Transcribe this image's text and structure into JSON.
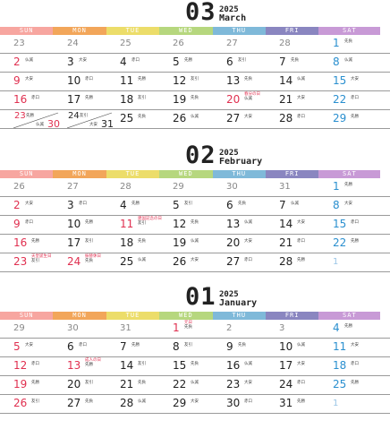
{
  "dow_labels": [
    "SUN",
    "MON",
    "TUE",
    "WED",
    "THU",
    "FRI",
    "SAT"
  ],
  "dow_colors": [
    "#f7a6a0",
    "#f2a65a",
    "#ecdd6a",
    "#b6d77e",
    "#7fb9d9",
    "#8a86c0",
    "#c89ad6"
  ],
  "months": [
    {
      "num": "03",
      "year": "2025",
      "name": "March",
      "weeks": [
        [
          {
            "d": "23",
            "c": "grey"
          },
          {
            "d": "24",
            "c": "grey"
          },
          {
            "d": "25",
            "c": "grey"
          },
          {
            "d": "26",
            "c": "grey"
          },
          {
            "d": "27",
            "c": "grey"
          },
          {
            "d": "28",
            "c": "grey"
          },
          {
            "d": "1",
            "c": "blue",
            "r": "先負"
          }
        ],
        [
          {
            "d": "2",
            "c": "red",
            "r": "仏滅"
          },
          {
            "d": "3",
            "r": "大安"
          },
          {
            "d": "4",
            "r": "赤口"
          },
          {
            "d": "5",
            "r": "先勝"
          },
          {
            "d": "6",
            "r": "友引"
          },
          {
            "d": "7",
            "r": "先負"
          },
          {
            "d": "8",
            "c": "blue",
            "r": "仏滅"
          }
        ],
        [
          {
            "d": "9",
            "c": "red",
            "r": "大安"
          },
          {
            "d": "10",
            "r": "赤口"
          },
          {
            "d": "11",
            "r": "先勝"
          },
          {
            "d": "12",
            "r": "友引"
          },
          {
            "d": "13",
            "r": "先負"
          },
          {
            "d": "14",
            "r": "仏滅"
          },
          {
            "d": "15",
            "c": "blue",
            "r": "大安"
          }
        ],
        [
          {
            "d": "16",
            "c": "red",
            "r": "赤口"
          },
          {
            "d": "17",
            "r": "先勝"
          },
          {
            "d": "18",
            "r": "友引"
          },
          {
            "d": "19",
            "r": "先負"
          },
          {
            "d": "20",
            "c": "red",
            "h": "春分の日",
            "r": "仏滅"
          },
          {
            "d": "21",
            "r": "大安"
          },
          {
            "d": "22",
            "c": "blue",
            "r": "赤口"
          }
        ],
        [
          {
            "split": true,
            "d1": "23",
            "k1": "先勝",
            "d2": "30",
            "k2": "仏滅"
          },
          {
            "split": true,
            "d1": "24",
            "k1": "友引",
            "d2": "31",
            "k2": "大安",
            "black": true
          },
          {
            "d": "25",
            "r": "先負"
          },
          {
            "d": "26",
            "r": "仏滅"
          },
          {
            "d": "27",
            "r": "大安"
          },
          {
            "d": "28",
            "r": "赤口"
          },
          {
            "d": "29",
            "c": "blue",
            "r": "先勝"
          }
        ]
      ]
    },
    {
      "num": "02",
      "year": "2025",
      "name": "February",
      "weeks": [
        [
          {
            "d": "26",
            "c": "grey"
          },
          {
            "d": "27",
            "c": "grey"
          },
          {
            "d": "28",
            "c": "grey"
          },
          {
            "d": "29",
            "c": "grey"
          },
          {
            "d": "30",
            "c": "grey"
          },
          {
            "d": "31",
            "c": "grey"
          },
          {
            "d": "1",
            "c": "blue",
            "r": "先勝"
          }
        ],
        [
          {
            "d": "2",
            "c": "red",
            "r": "大安"
          },
          {
            "d": "3",
            "r": "赤口"
          },
          {
            "d": "4",
            "r": "先勝"
          },
          {
            "d": "5",
            "r": "友引"
          },
          {
            "d": "6",
            "r": "先負"
          },
          {
            "d": "7",
            "r": "仏滅"
          },
          {
            "d": "8",
            "c": "blue",
            "r": "大安"
          }
        ],
        [
          {
            "d": "9",
            "c": "red",
            "r": "赤口"
          },
          {
            "d": "10",
            "r": "先勝"
          },
          {
            "d": "11",
            "c": "red",
            "h": "建国記念の日",
            "r": "友引"
          },
          {
            "d": "12",
            "r": "先負"
          },
          {
            "d": "13",
            "r": "仏滅"
          },
          {
            "d": "14",
            "r": "大安"
          },
          {
            "d": "15",
            "c": "blue",
            "r": "赤口"
          }
        ],
        [
          {
            "d": "16",
            "c": "red",
            "r": "先勝"
          },
          {
            "d": "17",
            "r": "友引"
          },
          {
            "d": "18",
            "r": "先負"
          },
          {
            "d": "19",
            "r": "仏滅"
          },
          {
            "d": "20",
            "r": "大安"
          },
          {
            "d": "21",
            "r": "赤口"
          },
          {
            "d": "22",
            "c": "blue",
            "r": "先勝"
          }
        ],
        [
          {
            "d": "23",
            "c": "red",
            "h": "天皇誕生日",
            "r": "友引"
          },
          {
            "d": "24",
            "c": "red",
            "h": "振替休日",
            "r": "先負"
          },
          {
            "d": "25",
            "r": "仏滅"
          },
          {
            "d": "26",
            "r": "大安"
          },
          {
            "d": "27",
            "r": "赤口"
          },
          {
            "d": "28",
            "r": "先勝"
          },
          {
            "d": "1",
            "c": "ltblue"
          }
        ]
      ]
    },
    {
      "num": "01",
      "year": "2025",
      "name": "January",
      "weeks": [
        [
          {
            "d": "29",
            "c": "grey"
          },
          {
            "d": "30",
            "c": "grey"
          },
          {
            "d": "31",
            "c": "grey"
          },
          {
            "d": "1",
            "c": "red",
            "h": "元日",
            "r": "先負"
          },
          {
            "d": "2",
            "c": "grey"
          },
          {
            "d": "3",
            "c": "grey"
          },
          {
            "d": "4",
            "c": "blue",
            "r": "先勝"
          }
        ],
        [
          {
            "d": "5",
            "c": "red",
            "r": "大安"
          },
          {
            "d": "6",
            "r": "赤口"
          },
          {
            "d": "7",
            "r": "先勝"
          },
          {
            "d": "8",
            "r": "友引"
          },
          {
            "d": "9",
            "r": "先負"
          },
          {
            "d": "10",
            "r": "仏滅"
          },
          {
            "d": "11",
            "c": "blue",
            "r": "大安"
          }
        ],
        [
          {
            "d": "12",
            "c": "red",
            "r": "赤口"
          },
          {
            "d": "13",
            "c": "red",
            "h": "成人の日",
            "r": "先勝"
          },
          {
            "d": "14",
            "r": "友引"
          },
          {
            "d": "15",
            "r": "先負"
          },
          {
            "d": "16",
            "r": "仏滅"
          },
          {
            "d": "17",
            "r": "大安"
          },
          {
            "d": "18",
            "c": "blue",
            "r": "赤口"
          }
        ],
        [
          {
            "d": "19",
            "c": "red",
            "r": "先勝"
          },
          {
            "d": "20",
            "r": "友引"
          },
          {
            "d": "21",
            "r": "先負"
          },
          {
            "d": "22",
            "r": "仏滅"
          },
          {
            "d": "23",
            "r": "大安"
          },
          {
            "d": "24",
            "r": "赤口"
          },
          {
            "d": "25",
            "c": "blue",
            "r": "先勝"
          }
        ],
        [
          {
            "d": "26",
            "c": "red",
            "r": "友引"
          },
          {
            "d": "27",
            "r": "先負"
          },
          {
            "d": "28",
            "r": "仏滅"
          },
          {
            "d": "29",
            "r": "大安"
          },
          {
            "d": "30",
            "r": "赤口"
          },
          {
            "d": "31",
            "r": "先勝"
          },
          {
            "d": "1",
            "c": "ltblue"
          }
        ]
      ]
    }
  ]
}
